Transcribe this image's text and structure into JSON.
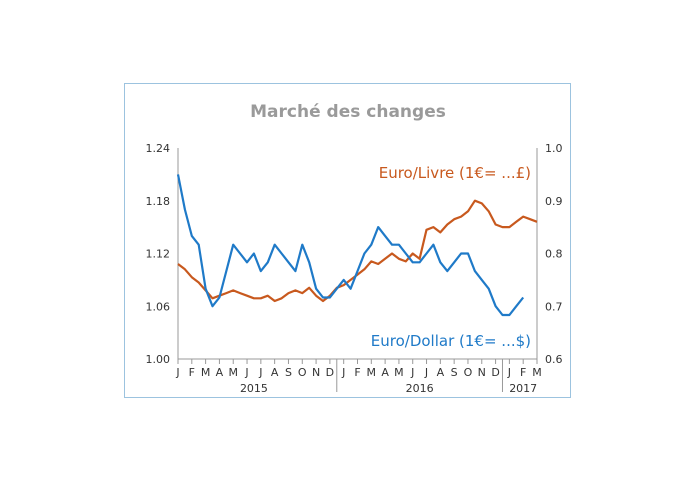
{
  "chart_data": {
    "type": "line",
    "title": "Marché des changes",
    "left_axis": {
      "ylim": [
        1.0,
        1.24
      ],
      "ticks": [
        "1.24",
        "1.18",
        "1.12",
        "1.06",
        "1.00"
      ]
    },
    "right_axis": {
      "ylim": [
        0.6,
        1.0
      ],
      "ticks": [
        "1.0",
        "0.9",
        "0.8",
        "0.7",
        "0.6"
      ]
    },
    "x_month_labels": [
      "J",
      "F",
      "M",
      "A",
      "M",
      "J",
      "J",
      "A",
      "S",
      "O",
      "N",
      "D",
      "J",
      "F",
      "M",
      "A",
      "M",
      "J",
      "J",
      "A",
      "S",
      "O",
      "N",
      "D",
      "J",
      "F",
      "M"
    ],
    "x_year_labels": [
      "2015",
      "2016",
      "2017"
    ],
    "grid": false,
    "series": [
      {
        "name": "Euro/Livre (1€= ...£)",
        "axis": "right",
        "color": "#c8591e",
        "month_index": [
          0,
          0.5,
          1,
          1.5,
          2,
          2.5,
          3,
          3.5,
          4,
          4.5,
          5,
          5.5,
          6,
          6.5,
          7,
          7.5,
          8,
          8.5,
          9,
          9.5,
          10,
          10.5,
          11,
          11.5,
          12,
          12.5,
          13,
          13.5,
          14,
          14.5,
          15,
          15.5,
          16,
          16.5,
          17,
          17.5,
          18,
          18.5,
          19,
          19.5,
          20,
          20.5,
          21,
          21.5,
          22,
          22.5,
          23,
          23.5,
          24,
          24.5,
          25,
          25.5,
          26
        ],
        "values": [
          0.78,
          0.77,
          0.755,
          0.745,
          0.73,
          0.715,
          0.72,
          0.725,
          0.73,
          0.725,
          0.72,
          0.715,
          0.715,
          0.72,
          0.71,
          0.715,
          0.725,
          0.73,
          0.725,
          0.735,
          0.72,
          0.71,
          0.72,
          0.735,
          0.74,
          0.75,
          0.76,
          0.77,
          0.785,
          0.78,
          0.79,
          0.8,
          0.79,
          0.785,
          0.8,
          0.79,
          0.845,
          0.85,
          0.84,
          0.855,
          0.865,
          0.87,
          0.88,
          0.9,
          0.895,
          0.88,
          0.855,
          0.85,
          0.85,
          0.86,
          0.87,
          0.865,
          0.86
        ]
      },
      {
        "name": "Euro/Dollar (1€= ...$)",
        "axis": "left",
        "color": "#1f7ac8",
        "month_index": [
          0,
          0.5,
          1,
          1.5,
          2,
          2.5,
          3,
          3.5,
          4,
          4.5,
          5,
          5.5,
          6,
          6.5,
          7,
          7.5,
          8,
          8.5,
          9,
          9.5,
          10,
          10.5,
          11,
          11.5,
          12,
          12.5,
          13,
          13.5,
          14,
          14.5,
          15,
          15.5,
          16,
          16.5,
          17,
          17.5,
          18,
          18.5,
          19,
          19.5,
          20,
          20.5,
          21,
          21.5,
          22,
          22.5,
          23,
          23.5,
          24,
          24.5,
          25
        ],
        "values": [
          1.21,
          1.17,
          1.14,
          1.13,
          1.08,
          1.06,
          1.07,
          1.1,
          1.13,
          1.12,
          1.11,
          1.12,
          1.1,
          1.11,
          1.13,
          1.12,
          1.11,
          1.1,
          1.13,
          1.11,
          1.08,
          1.07,
          1.07,
          1.08,
          1.09,
          1.08,
          1.1,
          1.12,
          1.13,
          1.15,
          1.14,
          1.13,
          1.13,
          1.12,
          1.11,
          1.11,
          1.12,
          1.13,
          1.11,
          1.1,
          1.11,
          1.12,
          1.12,
          1.1,
          1.09,
          1.08,
          1.06,
          1.05,
          1.05,
          1.06,
          1.07
        ]
      }
    ]
  }
}
